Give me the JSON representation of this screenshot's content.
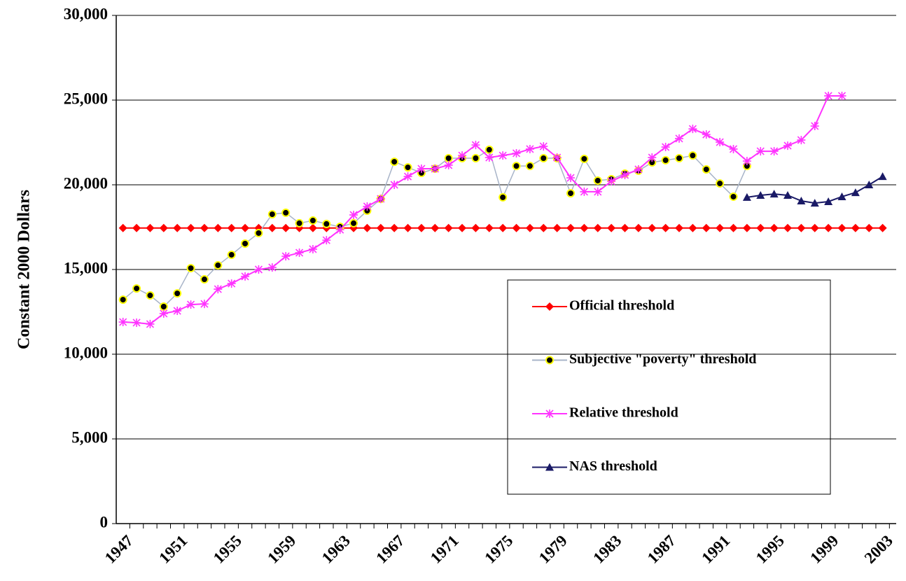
{
  "chart_data": {
    "type": "line",
    "y_label": "Constant 2000 Dollars",
    "x": [
      1947,
      1948,
      1949,
      1950,
      1951,
      1952,
      1953,
      1954,
      1955,
      1956,
      1957,
      1958,
      1959,
      1960,
      1961,
      1962,
      1963,
      1964,
      1965,
      1966,
      1967,
      1968,
      1969,
      1970,
      1971,
      1972,
      1973,
      1974,
      1975,
      1976,
      1977,
      1978,
      1979,
      1980,
      1981,
      1982,
      1983,
      1984,
      1985,
      1986,
      1987,
      1988,
      1989,
      1990,
      1991,
      1992,
      1993,
      1994,
      1995,
      1996,
      1997,
      1998,
      1999,
      2000,
      2001,
      2002,
      2003
    ],
    "xlim": [
      1946.5,
      2004
    ],
    "xticks": [
      1947,
      1951,
      1955,
      1959,
      1963,
      1967,
      1971,
      1975,
      1979,
      1983,
      1987,
      1991,
      1995,
      1999,
      2003
    ],
    "ylim": [
      0,
      30000
    ],
    "yticks": [
      0,
      {
        "value": 5000,
        "label": "5,000"
      },
      {
        "value": 10000,
        "label": "10,000"
      },
      {
        "value": 15000,
        "label": "15,000"
      },
      {
        "value": 20000,
        "label": "20,000"
      },
      {
        "value": 25000,
        "label": "25,000"
      },
      {
        "value": 30000,
        "label": "30,000"
      }
    ],
    "grid": true,
    "series": [
      {
        "name": "Official threshold",
        "color": "#ff0000",
        "marker": "diamond",
        "values": [
          17450,
          17450,
          17450,
          17450,
          17450,
          17450,
          17450,
          17450,
          17450,
          17450,
          17450,
          17450,
          17450,
          17450,
          17450,
          17450,
          17450,
          17450,
          17450,
          17450,
          17450,
          17450,
          17450,
          17450,
          17450,
          17450,
          17450,
          17450,
          17450,
          17450,
          17450,
          17450,
          17450,
          17450,
          17450,
          17450,
          17450,
          17450,
          17450,
          17450,
          17450,
          17450,
          17450,
          17450,
          17450,
          17450,
          17450,
          17450,
          17450,
          17450,
          17450,
          17450,
          17450,
          17450,
          17450,
          17450,
          17450
        ]
      },
      {
        "name": "Subjective \"poverty\" threshold",
        "color": "#a8b4c8",
        "marker": "circle",
        "values": [
          13220,
          13880,
          13470,
          12810,
          13590,
          15080,
          14420,
          15250,
          15870,
          16530,
          17150,
          18260,
          18350,
          17730,
          17890,
          17690,
          17520,
          17730,
          18470,
          19170,
          21360,
          21030,
          20700,
          20950,
          21570,
          21570,
          21570,
          22070,
          19260,
          21110,
          21110,
          21570,
          21570,
          19500,
          21530,
          20250,
          20330,
          20660,
          20830,
          21320,
          21450,
          21570,
          21730,
          20910,
          20080,
          19300,
          21110,
          null,
          null,
          null,
          null,
          null,
          null,
          null,
          null,
          null,
          null
        ]
      },
      {
        "name": "Relative threshold",
        "color": "#ff33ff",
        "marker": "star",
        "values": [
          11900,
          11860,
          11780,
          12400,
          12560,
          12930,
          12970,
          13840,
          14170,
          14590,
          15000,
          15120,
          15780,
          15990,
          16200,
          16730,
          17350,
          18220,
          18720,
          19170,
          20000,
          20490,
          20950,
          20950,
          21160,
          21730,
          22350,
          21610,
          21730,
          21860,
          22110,
          22270,
          21610,
          20410,
          19590,
          19590,
          20210,
          20580,
          20910,
          21610,
          22230,
          22730,
          23300,
          22970,
          22520,
          22110,
          21400,
          21980,
          21980,
          22310,
          22640,
          23470,
          25250,
          25250,
          null,
          null,
          null
        ]
      },
      {
        "name": "NAS threshold",
        "color": "#1a1a66",
        "marker": "triangle",
        "values": [
          null,
          null,
          null,
          null,
          null,
          null,
          null,
          null,
          null,
          null,
          null,
          null,
          null,
          null,
          null,
          null,
          null,
          null,
          null,
          null,
          null,
          null,
          null,
          null,
          null,
          null,
          null,
          null,
          null,
          null,
          null,
          null,
          null,
          null,
          null,
          null,
          null,
          null,
          null,
          null,
          null,
          null,
          null,
          null,
          null,
          null,
          19260,
          19380,
          19460,
          19380,
          19050,
          18920,
          19010,
          19300,
          19540,
          20000,
          20490
        ]
      }
    ]
  }
}
